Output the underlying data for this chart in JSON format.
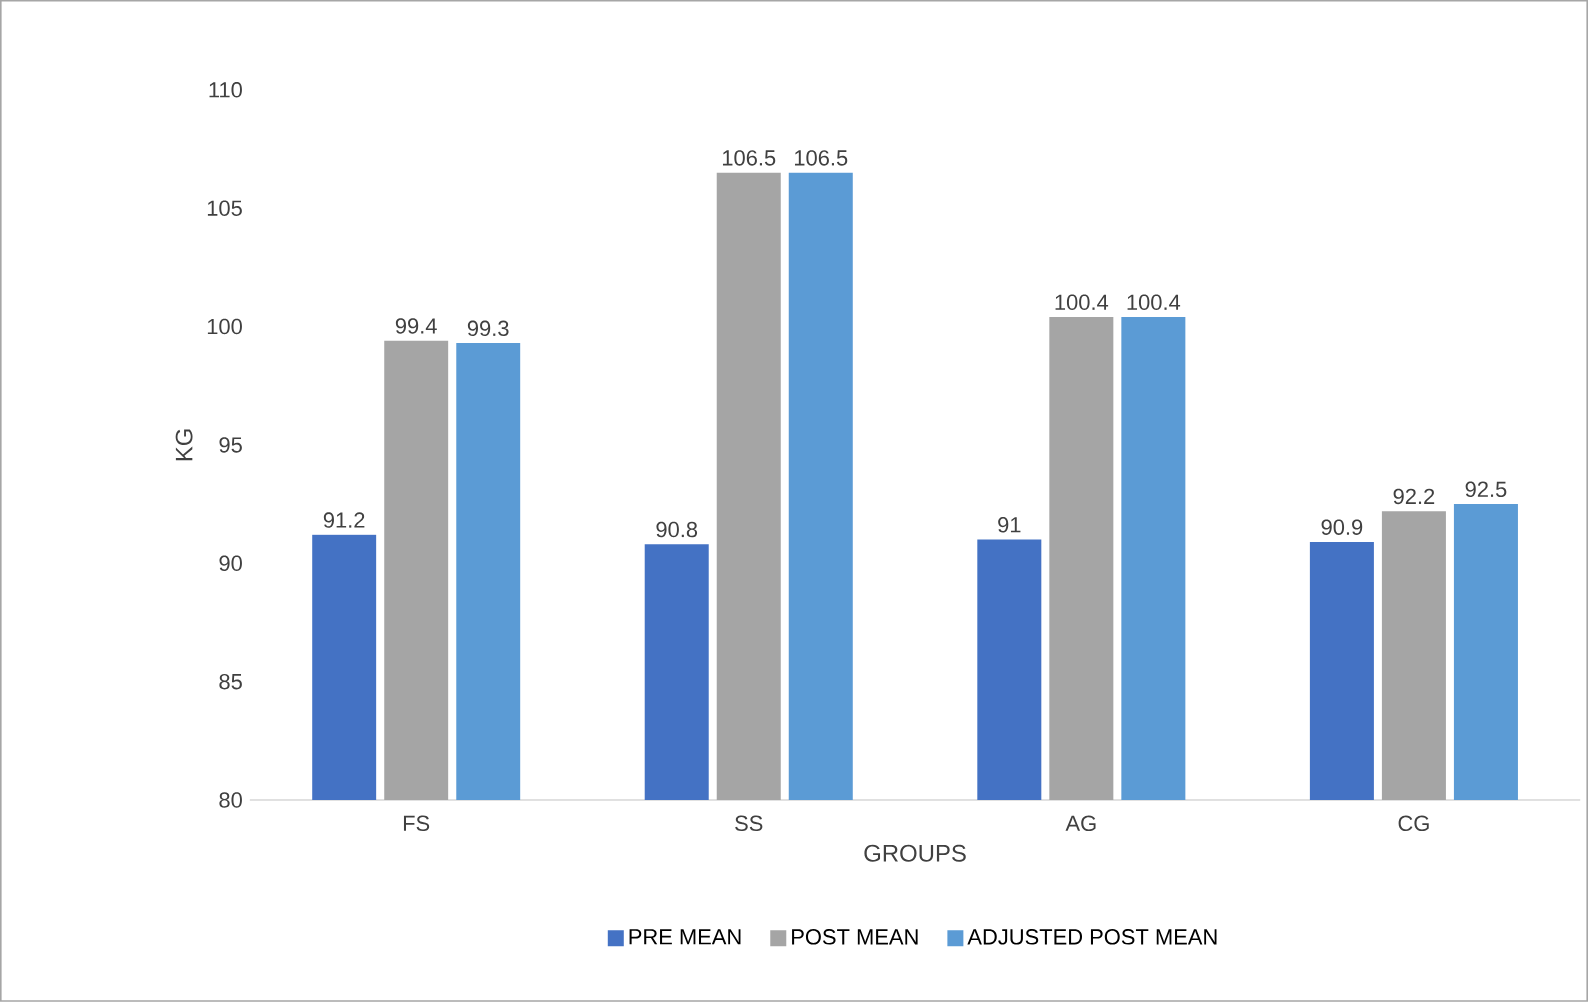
{
  "chart_data": {
    "type": "bar",
    "xlabel": "GROUPS",
    "ylabel": "KG",
    "categories": [
      "FS",
      "SS",
      "AG",
      "CG"
    ],
    "series": [
      {
        "name": "PRE MEAN",
        "color": "#4472c4",
        "values": [
          91.2,
          90.8,
          91,
          90.9
        ],
        "value_labels": [
          "91.2",
          "90.8",
          "91",
          "90.9"
        ]
      },
      {
        "name": "POST MEAN",
        "color": "#a5a5a5",
        "values": [
          99.4,
          106.5,
          100.4,
          92.2
        ],
        "value_labels": [
          "99.4",
          "106.5",
          "100.4",
          "92.2"
        ]
      },
      {
        "name": "ADJUSTED POST MEAN",
        "color": "#5b9bd5",
        "values": [
          99.3,
          106.5,
          100.4,
          92.5
        ],
        "value_labels": [
          "99.3",
          "106.5",
          "100.4",
          "92.5"
        ]
      }
    ],
    "ylim": [
      80,
      110
    ],
    "yticks": [
      80,
      85,
      90,
      95,
      100,
      105,
      110
    ],
    "grid": false,
    "legend": "bottom"
  }
}
